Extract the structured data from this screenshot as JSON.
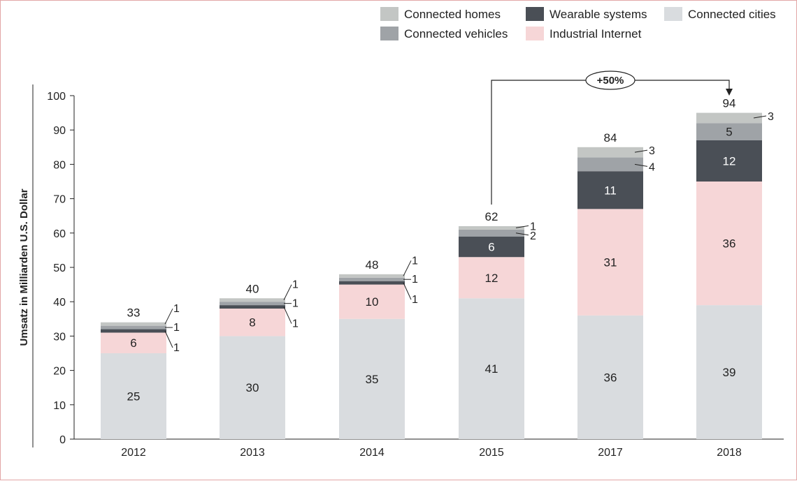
{
  "chart_data": {
    "type": "bar",
    "stacked": true,
    "ylabel": "Umsatz in Milliarden U.S. Dollar",
    "xlabel": "",
    "ylim": [
      0,
      100
    ],
    "yticks": [
      0,
      10,
      20,
      30,
      40,
      50,
      60,
      70,
      80,
      90,
      100
    ],
    "grid": false,
    "legend_position": "top-right",
    "categories": [
      "2012",
      "2013",
      "2014",
      "2015",
      "2017",
      "2018"
    ],
    "totals": [
      33,
      40,
      48,
      62,
      84,
      94
    ],
    "series": [
      {
        "name": "Connected cities",
        "color": "#d9dcdf",
        "values": [
          25,
          30,
          35,
          41,
          36,
          39
        ]
      },
      {
        "name": "Industrial Internet",
        "color": "#f6d6d7",
        "values": [
          6,
          8,
          10,
          12,
          31,
          36
        ]
      },
      {
        "name": "Wearable systems",
        "color": "#4a4f56",
        "values": [
          1,
          1,
          1,
          6,
          11,
          12
        ]
      },
      {
        "name": "Connected vehicles",
        "color": "#9fa3a7",
        "values": [
          1,
          1,
          1,
          2,
          4,
          5
        ]
      },
      {
        "name": "Connected homes",
        "color": "#c3c6c4",
        "values": [
          1,
          1,
          1,
          1,
          3,
          3
        ]
      }
    ],
    "legend_order": [
      "Connected homes",
      "Wearable systems",
      "Connected cities",
      "Connected vehicles",
      "Industrial Internet"
    ],
    "annotation": {
      "text": "+50%",
      "from": "2015",
      "to": "2018"
    }
  }
}
